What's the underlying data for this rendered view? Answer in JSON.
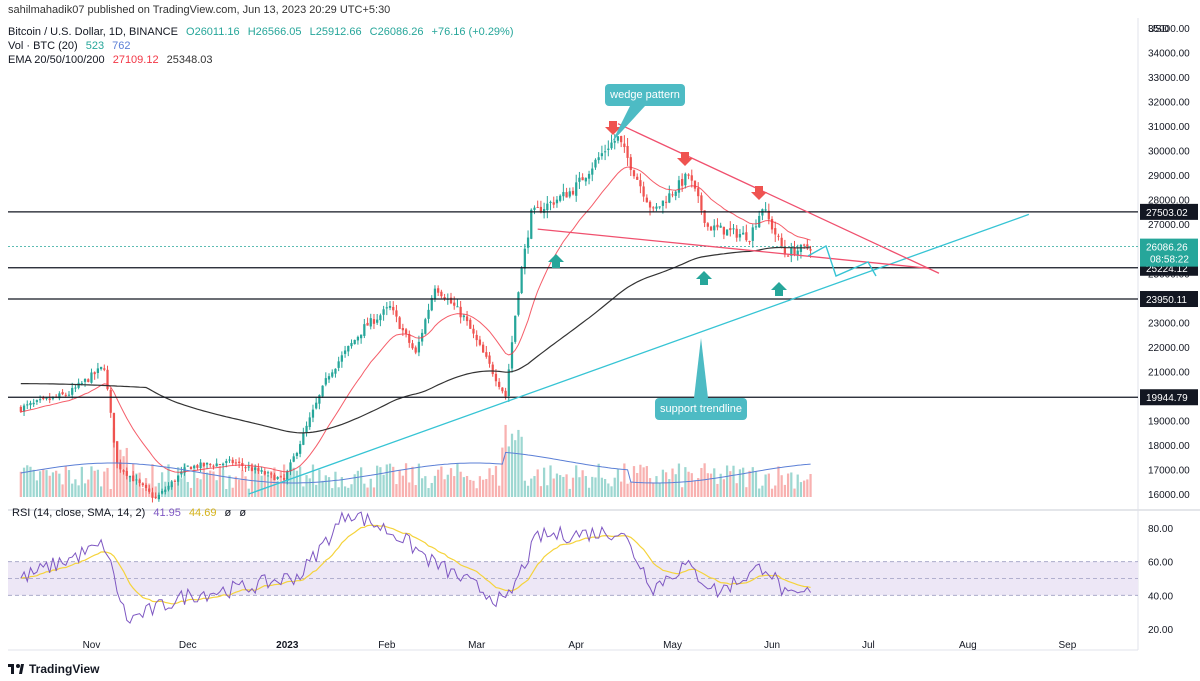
{
  "header": {
    "published": "sahilmahadik07 published on TradingView.com, Jun 13, 2023 20:29 UTC+5:30",
    "symbol": "Bitcoin / U.S. Dollar, 1D, BINANCE",
    "open": "O26011.16",
    "high": "H26566.05",
    "low": "L25912.66",
    "close": "C26086.26",
    "change": "+76.16 (+0.29%)",
    "vol_label": "Vol · BTC (20)",
    "vol_v1": "523",
    "vol_v2": "762",
    "ema_label": "EMA 20/50/100/200",
    "ema_v1": "27109.12",
    "ema_v2": "25348.03"
  },
  "rsi_header": {
    "label": "RSI (14, close, SMA, 14, 2)",
    "v1": "41.95",
    "v2": "44.69",
    "v3": "ø",
    "v4": "ø"
  },
  "brand": "TradingView",
  "annotations": {
    "wedge": "wedge pattern",
    "support": "support trendline"
  },
  "colors": {
    "up": "#26a69a",
    "down": "#ef5350",
    "ema_red": "#f23645",
    "ema_black": "#333333",
    "vol_ma": "#5b7fd6",
    "trendline": "#36c4d4",
    "wedge": "#f0506e",
    "rsi": "#7e57c2",
    "rsi_ma": "#f5d33b",
    "annotation": "#4dbbc4"
  },
  "chart_data": {
    "type": "candlestick",
    "price_axis": {
      "unit": "USD",
      "min": 16000,
      "max": 35000,
      "ticks": [
        16000,
        17000,
        18000,
        19000,
        20000,
        21000,
        22000,
        23000,
        24000,
        25000,
        26000,
        27000,
        28000,
        29000,
        30000,
        31000,
        32000,
        33000,
        34000,
        35000
      ],
      "tick_labels": [
        "16000.00",
        "17000.00",
        "18000.00",
        "19000.00",
        "20000.00",
        "21000.00",
        "22000.00",
        "23000.00",
        "24000.00",
        "25000.00",
        "26000.00",
        "27000.00",
        "28000.00",
        "29000.00",
        "30000.00",
        "31000.00",
        "32000.00",
        "33000.00",
        "34000.00",
        "35000.00"
      ]
    },
    "time_axis": {
      "labels": [
        "Nov",
        "Dec",
        "2023",
        "Feb",
        "Mar",
        "Apr",
        "May",
        "Jun",
        "Jul",
        "Aug",
        "Sep"
      ],
      "dates": [
        "2022-11-01",
        "2022-12-01",
        "2023-01-01",
        "2023-02-01",
        "2023-03-01",
        "2023-04-01",
        "2023-05-01",
        "2023-06-01",
        "2023-07-01",
        "2023-08-01",
        "2023-09-01"
      ]
    },
    "horizontal_levels": [
      {
        "price": 27503.02,
        "label": "27503.02"
      },
      {
        "price": 25224.12,
        "label": "25224.12"
      },
      {
        "price": 23950.11,
        "label": "23950.11"
      },
      {
        "price": 19944.79,
        "label": "19944.79"
      }
    ],
    "last_price": {
      "price": 26086.26,
      "label": "26086.26",
      "countdown": "08:58:22"
    },
    "price_path": [
      [
        "2022-10-10",
        19500
      ],
      [
        "2022-10-25",
        20100
      ],
      [
        "2022-11-05",
        21200
      ],
      [
        "2022-11-09",
        17200
      ],
      [
        "2022-11-21",
        15800
      ],
      [
        "2022-12-01",
        17100
      ],
      [
        "2022-12-15",
        17300
      ],
      [
        "2022-12-31",
        16550
      ],
      [
        "2023-01-14",
        20900
      ],
      [
        "2023-01-25",
        22800
      ],
      [
        "2023-02-02",
        23600
      ],
      [
        "2023-02-10",
        21700
      ],
      [
        "2023-02-16",
        24500
      ],
      [
        "2023-02-25",
        23200
      ],
      [
        "2023-03-10",
        20000
      ],
      [
        "2023-03-14",
        24400
      ],
      [
        "2023-03-18",
        27400
      ],
      [
        "2023-03-31",
        28400
      ],
      [
        "2023-04-11",
        30200
      ],
      [
        "2023-04-14",
        30500
      ],
      [
        "2023-04-25",
        27500
      ],
      [
        "2023-05-06",
        29000
      ],
      [
        "2023-05-12",
        26900
      ],
      [
        "2023-05-25",
        26500
      ],
      [
        "2023-05-29",
        27700
      ],
      [
        "2023-06-05",
        25800
      ],
      [
        "2023-06-13",
        26086
      ]
    ],
    "wedge_resistance": [
      [
        "2023-04-14",
        31100
      ],
      [
        "2023-07-23",
        25000
      ]
    ],
    "wedge_support": [
      [
        "2023-03-20",
        26800
      ],
      [
        "2023-07-20",
        25200
      ]
    ],
    "support_trendline": [
      [
        "2022-12-20",
        16000
      ],
      [
        "2023-08-20",
        27400
      ]
    ],
    "rsi": {
      "ticks": [
        20,
        40,
        60,
        80
      ],
      "tick_labels": [
        "20.00",
        "40.00",
        "60.00",
        "80.00"
      ],
      "band": [
        40,
        60
      ],
      "path": [
        [
          "2022-10-10",
          50
        ],
        [
          "2022-11-05",
          70
        ],
        [
          "2022-11-12",
          25
        ],
        [
          "2022-12-01",
          40
        ],
        [
          "2022-12-20",
          45
        ],
        [
          "2023-01-05",
          52
        ],
        [
          "2023-01-20",
          90
        ],
        [
          "2023-02-05",
          75
        ],
        [
          "2023-02-15",
          60
        ],
        [
          "2023-03-10",
          35
        ],
        [
          "2023-03-20",
          75
        ],
        [
          "2023-04-15",
          78
        ],
        [
          "2023-04-25",
          45
        ],
        [
          "2023-05-05",
          58
        ],
        [
          "2023-05-15",
          42
        ],
        [
          "2023-05-30",
          58
        ],
        [
          "2023-06-06",
          38
        ],
        [
          "2023-06-13",
          41.95
        ]
      ]
    }
  }
}
